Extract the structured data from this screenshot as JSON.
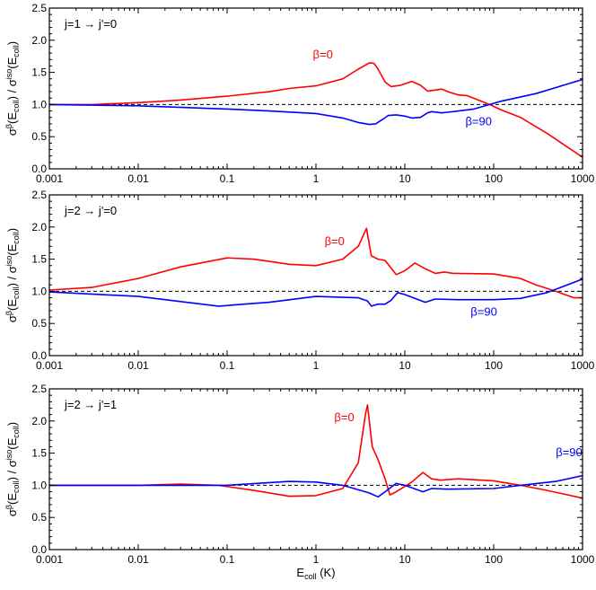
{
  "chart_data": [
    {
      "type": "line",
      "title": "j=1 → j'=0",
      "xscale": "log",
      "xlim": [
        0.001,
        1000
      ],
      "ylim": [
        0,
        2.5
      ],
      "xticks": [
        "0.001",
        "0.01",
        "0.1",
        "1",
        "10",
        "100",
        "1000"
      ],
      "yticks": [
        "0.0",
        "0.5",
        "1.0",
        "1.5",
        "2.0",
        "2.5"
      ],
      "reference_line": 1.0,
      "series": [
        {
          "name": "β=0",
          "color": "#ff0000",
          "x": [
            0.001,
            0.003,
            0.01,
            0.03,
            0.1,
            0.3,
            0.5,
            1,
            2,
            3,
            4,
            4.5,
            5,
            6,
            7,
            9,
            12,
            15,
            18,
            21,
            26,
            32,
            40,
            50,
            70,
            90,
            120,
            200,
            400,
            1000
          ],
          "y": [
            1.0,
            1.0,
            1.03,
            1.07,
            1.13,
            1.2,
            1.25,
            1.29,
            1.4,
            1.55,
            1.65,
            1.64,
            1.55,
            1.35,
            1.28,
            1.3,
            1.36,
            1.3,
            1.21,
            1.22,
            1.24,
            1.19,
            1.15,
            1.14,
            1.06,
            1.0,
            0.92,
            0.8,
            0.55,
            0.18
          ]
        },
        {
          "name": "β=90",
          "color": "#0000ff",
          "x": [
            0.001,
            0.01,
            0.1,
            0.3,
            1,
            2,
            3,
            4,
            4.7,
            5.5,
            6.5,
            8,
            10,
            12,
            15,
            18,
            20,
            26,
            30,
            40,
            60,
            90,
            120,
            300,
            1000
          ],
          "y": [
            1.0,
            0.98,
            0.93,
            0.9,
            0.86,
            0.79,
            0.72,
            0.69,
            0.7,
            0.76,
            0.83,
            0.84,
            0.82,
            0.79,
            0.8,
            0.87,
            0.89,
            0.87,
            0.88,
            0.9,
            0.93,
            1.0,
            1.05,
            1.17,
            1.39
          ]
        }
      ]
    },
    {
      "type": "line",
      "title": "j=2 → j'=0",
      "xscale": "log",
      "xlim": [
        0.001,
        1000
      ],
      "ylim": [
        0,
        2.5
      ],
      "xticks": [
        "0.001",
        "0.01",
        "0.1",
        "1",
        "10",
        "100",
        "1000"
      ],
      "yticks": [
        "0.0",
        "0.5",
        "1.0",
        "1.5",
        "2.0",
        "2.5"
      ],
      "reference_line": 1.0,
      "series": [
        {
          "name": "β=0",
          "color": "#ff0000",
          "x": [
            0.001,
            0.003,
            0.01,
            0.03,
            0.1,
            0.2,
            0.5,
            1,
            2,
            3,
            3.7,
            4.2,
            5,
            6,
            8,
            10,
            13,
            17,
            22,
            28,
            35,
            100,
            200,
            300,
            500,
            800,
            1000
          ],
          "y": [
            1.02,
            1.06,
            1.2,
            1.38,
            1.52,
            1.5,
            1.42,
            1.4,
            1.5,
            1.7,
            1.98,
            1.55,
            1.5,
            1.48,
            1.26,
            1.32,
            1.44,
            1.35,
            1.28,
            1.3,
            1.28,
            1.27,
            1.2,
            1.1,
            1.0,
            0.9,
            0.9
          ]
        },
        {
          "name": "β=90",
          "color": "#0000ff",
          "x": [
            0.001,
            0.01,
            0.08,
            0.3,
            1,
            3,
            3.8,
            4.2,
            5,
            6,
            7,
            8.3,
            10,
            17,
            22,
            40,
            100,
            200,
            400,
            1000
          ],
          "y": [
            0.99,
            0.92,
            0.77,
            0.83,
            0.92,
            0.9,
            0.85,
            0.77,
            0.8,
            0.8,
            0.86,
            0.98,
            0.95,
            0.83,
            0.88,
            0.87,
            0.87,
            0.89,
            0.98,
            1.19
          ]
        }
      ]
    },
    {
      "type": "line",
      "title": "j=2 → j'=1",
      "xscale": "log",
      "xlim": [
        0.001,
        1000
      ],
      "ylim": [
        0,
        2.5
      ],
      "xticks": [
        "0.001",
        "0.01",
        "0.1",
        "1",
        "10",
        "100",
        "1000"
      ],
      "yticks": [
        "0.0",
        "0.5",
        "1.0",
        "1.5",
        "2.0",
        "2.5"
      ],
      "reference_line": 1.0,
      "series": [
        {
          "name": "β=0",
          "color": "#ff0000",
          "x": [
            0.001,
            0.01,
            0.03,
            0.08,
            0.2,
            0.5,
            1,
            2,
            3,
            3.6,
            3.8,
            4.3,
            5,
            6,
            6.8,
            8,
            12,
            16,
            20,
            25,
            40,
            100,
            200,
            400,
            1000
          ],
          "y": [
            1.0,
            1.0,
            1.02,
            1.0,
            0.92,
            0.83,
            0.84,
            0.95,
            1.35,
            2.1,
            2.25,
            1.6,
            1.4,
            1.1,
            0.85,
            0.9,
            1.05,
            1.2,
            1.1,
            1.08,
            1.1,
            1.07,
            1.0,
            0.92,
            0.8
          ]
        },
        {
          "name": "β=90",
          "color": "#0000ff",
          "x": [
            0.001,
            0.1,
            0.5,
            1,
            2,
            3,
            4,
            5,
            6,
            8,
            10,
            16,
            20,
            30,
            100,
            200,
            500,
            1000
          ],
          "y": [
            1.0,
            1.0,
            1.06,
            1.05,
            1.0,
            0.93,
            0.88,
            0.82,
            0.9,
            1.03,
            1.0,
            0.9,
            0.95,
            0.94,
            0.95,
            1.0,
            1.06,
            1.15
          ]
        }
      ]
    }
  ],
  "axes": {
    "ylabel": {
      "main1": "σ",
      "sup1": "β",
      "paren1": "(E",
      "sub1": "coll",
      "close1": ") / σ",
      "sup2": "iso",
      "paren2": "(E",
      "sub2": "coll",
      "close2": ")"
    },
    "xlabel": {
      "main": "E",
      "sub": "coll",
      "unit": " (K)"
    }
  }
}
